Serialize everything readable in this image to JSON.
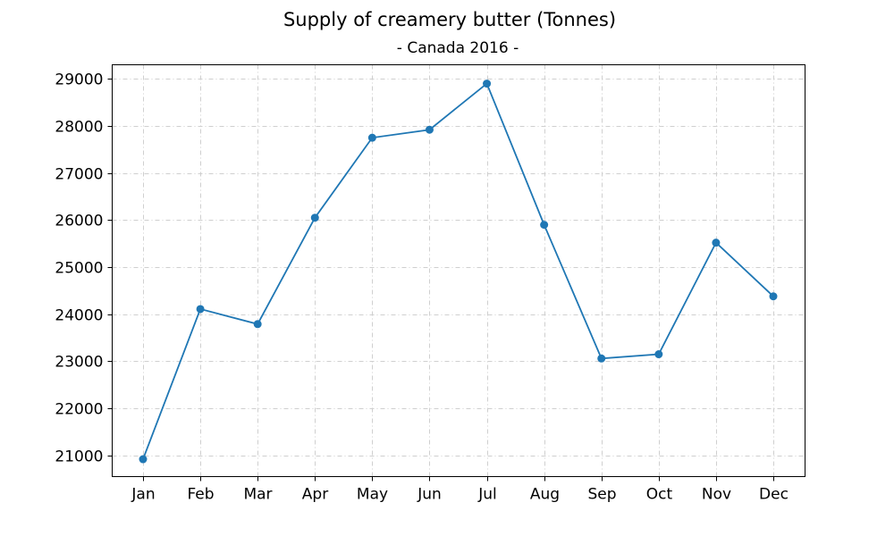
{
  "chart_data": {
    "type": "line",
    "title": "Supply of creamery butter (Tonnes)",
    "subtitle": "- Canada 2016 -",
    "xlabel": "",
    "ylabel": "",
    "categories": [
      "Jan",
      "Feb",
      "Mar",
      "Apr",
      "May",
      "Jun",
      "Jul",
      "Aug",
      "Sep",
      "Oct",
      "Nov",
      "Dec"
    ],
    "series": [
      {
        "values": [
          20920,
          24110,
          23790,
          26050,
          27750,
          27920,
          28900,
          25900,
          23060,
          23150,
          25520,
          24380
        ],
        "color": "#1f77b4"
      }
    ],
    "yticks": [
      21000,
      22000,
      23000,
      24000,
      25000,
      26000,
      27000,
      28000,
      29000
    ],
    "ylim": [
      20550,
      29300
    ],
    "grid": true,
    "marker": "circle"
  }
}
